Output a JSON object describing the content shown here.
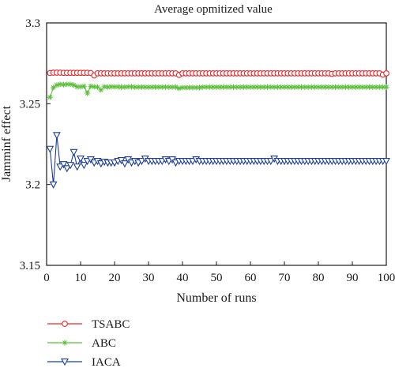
{
  "chart_data": {
    "type": "line",
    "title": "Average opmitized value",
    "xlabel": "Number of runs",
    "ylabel": "Jamminf effect",
    "xlim": [
      0,
      100
    ],
    "ylim": [
      3.15,
      3.3
    ],
    "xticks": [
      0,
      10,
      20,
      30,
      40,
      50,
      60,
      70,
      80,
      90,
      100
    ],
    "yticks": [
      3.15,
      3.2,
      3.25,
      3.3
    ],
    "ytick_labels": [
      "3.15",
      "3.2",
      "3.25",
      "3.3"
    ],
    "grid": false,
    "legend_position": "below",
    "x": [
      1,
      2,
      3,
      4,
      5,
      6,
      7,
      8,
      9,
      10,
      11,
      12,
      13,
      14,
      15,
      16,
      17,
      18,
      19,
      20,
      21,
      22,
      23,
      24,
      25,
      26,
      27,
      28,
      29,
      30,
      31,
      32,
      33,
      34,
      35,
      36,
      37,
      38,
      39,
      40,
      41,
      42,
      43,
      44,
      45,
      46,
      47,
      48,
      49,
      50,
      51,
      52,
      53,
      54,
      55,
      56,
      57,
      58,
      59,
      60,
      61,
      62,
      63,
      64,
      65,
      66,
      67,
      68,
      69,
      70,
      71,
      72,
      73,
      74,
      75,
      76,
      77,
      78,
      79,
      80,
      81,
      82,
      83,
      84,
      85,
      86,
      87,
      88,
      89,
      90,
      91,
      92,
      93,
      94,
      95,
      96,
      97,
      98,
      99,
      100
    ],
    "series": [
      {
        "name": "TSABC",
        "color": "#e8262b",
        "marker": "circle",
        "values": [
          3.269,
          3.2692,
          3.2692,
          3.2692,
          3.2691,
          3.2691,
          3.2691,
          3.2691,
          3.2691,
          3.2691,
          3.2691,
          3.2691,
          3.269,
          3.2675,
          3.2688,
          3.2688,
          3.2688,
          3.2688,
          3.2688,
          3.2688,
          3.2688,
          3.2688,
          3.2688,
          3.2688,
          3.2688,
          3.2688,
          3.2688,
          3.2688,
          3.2688,
          3.2688,
          3.2688,
          3.2688,
          3.2688,
          3.2688,
          3.2688,
          3.2688,
          3.2688,
          3.2688,
          3.2678,
          3.2688,
          3.2688,
          3.2688,
          3.2688,
          3.2688,
          3.2688,
          3.2688,
          3.2688,
          3.2688,
          3.2688,
          3.2688,
          3.2688,
          3.2688,
          3.2688,
          3.2688,
          3.2688,
          3.2688,
          3.2688,
          3.2688,
          3.2688,
          3.2688,
          3.2688,
          3.2688,
          3.2688,
          3.2688,
          3.2688,
          3.2688,
          3.2688,
          3.2688,
          3.2688,
          3.2688,
          3.2688,
          3.2688,
          3.2688,
          3.2688,
          3.2688,
          3.2688,
          3.2688,
          3.2688,
          3.2688,
          3.2688,
          3.2688,
          3.2688,
          3.2688,
          3.2685,
          3.2688,
          3.2688,
          3.2688,
          3.2688,
          3.2688,
          3.2688,
          3.2688,
          3.2688,
          3.2688,
          3.2688,
          3.2688,
          3.2688,
          3.2688,
          3.2688,
          3.268,
          3.2688
        ]
      },
      {
        "name": "ABC",
        "color": "#5cbf3a",
        "marker": "asterisk",
        "values": [
          3.254,
          3.26,
          3.2615,
          3.262,
          3.2618,
          3.262,
          3.262,
          3.2615,
          3.2605,
          3.2605,
          3.2608,
          3.2565,
          3.2608,
          3.2605,
          3.2603,
          3.2585,
          3.2605,
          3.2603,
          3.2605,
          3.2605,
          3.2605,
          3.2603,
          3.2603,
          3.2605,
          3.2605,
          3.2603,
          3.2603,
          3.2603,
          3.2603,
          3.2603,
          3.2603,
          3.2603,
          3.2603,
          3.2603,
          3.2603,
          3.2603,
          3.2603,
          3.2603,
          3.2595,
          3.26,
          3.26,
          3.26,
          3.26,
          3.26,
          3.26,
          3.2603,
          3.2603,
          3.2603,
          3.2603,
          3.2603,
          3.2603,
          3.2603,
          3.2603,
          3.2603,
          3.2603,
          3.2603,
          3.2603,
          3.2603,
          3.2603,
          3.2603,
          3.2603,
          3.2603,
          3.2603,
          3.2603,
          3.2603,
          3.2603,
          3.2603,
          3.2603,
          3.2603,
          3.2603,
          3.2603,
          3.2603,
          3.2603,
          3.2603,
          3.2603,
          3.2603,
          3.2603,
          3.2603,
          3.2603,
          3.2603,
          3.2603,
          3.2603,
          3.2603,
          3.2603,
          3.2603,
          3.2603,
          3.2603,
          3.2603,
          3.2603,
          3.2603,
          3.2603,
          3.2603,
          3.2603,
          3.2603,
          3.2603,
          3.2603,
          3.2603,
          3.2603,
          3.2603,
          3.2603
        ]
      },
      {
        "name": "IACA",
        "color": "#1c3d96",
        "marker": "triangle-down",
        "values": [
          3.222,
          3.2,
          3.2305,
          3.211,
          3.2125,
          3.21,
          3.212,
          3.22,
          3.211,
          3.216,
          3.212,
          3.2145,
          3.2155,
          3.2135,
          3.2145,
          3.213,
          3.214,
          3.2135,
          3.2135,
          3.2135,
          3.2145,
          3.215,
          3.213,
          3.2155,
          3.2135,
          3.2145,
          3.2135,
          3.2145,
          3.216,
          3.2145,
          3.2145,
          3.2145,
          3.2145,
          3.2145,
          3.2155,
          3.2145,
          3.2155,
          3.2135,
          3.2145,
          3.2145,
          3.2145,
          3.2145,
          3.2145,
          3.2155,
          3.2145,
          3.2145,
          3.2145,
          3.2145,
          3.2145,
          3.2145,
          3.2145,
          3.2145,
          3.2145,
          3.2145,
          3.2145,
          3.2145,
          3.2145,
          3.2145,
          3.2145,
          3.2145,
          3.2145,
          3.2145,
          3.2145,
          3.2145,
          3.2145,
          3.2145,
          3.216,
          3.2145,
          3.2145,
          3.2145,
          3.2145,
          3.2145,
          3.2145,
          3.2145,
          3.2145,
          3.2145,
          3.2145,
          3.2145,
          3.2145,
          3.2145,
          3.2145,
          3.2145,
          3.2145,
          3.2145,
          3.2145,
          3.2145,
          3.2145,
          3.2145,
          3.2145,
          3.2145,
          3.2145,
          3.2145,
          3.2145,
          3.2145,
          3.2145,
          3.2145,
          3.2145,
          3.2145,
          3.2145,
          3.2145
        ]
      }
    ]
  }
}
